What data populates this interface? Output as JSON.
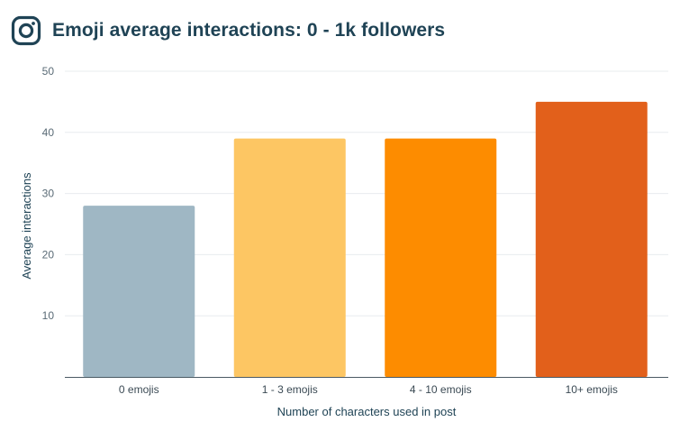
{
  "header": {
    "title": "Emoji average interactions: 0 - 1k followers",
    "logo_icon": "instagram-logo-icon"
  },
  "chart_data": {
    "type": "bar",
    "title": "Emoji average interactions: 0 - 1k followers",
    "xlabel": "Number of characters used in post",
    "ylabel": "Average interactions",
    "categories": [
      "0 emojis",
      "1 - 3 emojis",
      "4 - 10 emojis",
      "10+ emojis"
    ],
    "values": [
      28,
      39,
      39,
      45
    ],
    "colors": [
      "#9fb7c4",
      "#fdc663",
      "#fd8c00",
      "#e2601b"
    ],
    "ylim": [
      0,
      50
    ],
    "yticks": [
      10,
      20,
      30,
      40,
      50
    ],
    "grid": true,
    "legend": "none"
  },
  "theme": {
    "title_color": "#1f4355",
    "grid_color": "#e8ecef",
    "axis_color": "#4a5a64"
  }
}
